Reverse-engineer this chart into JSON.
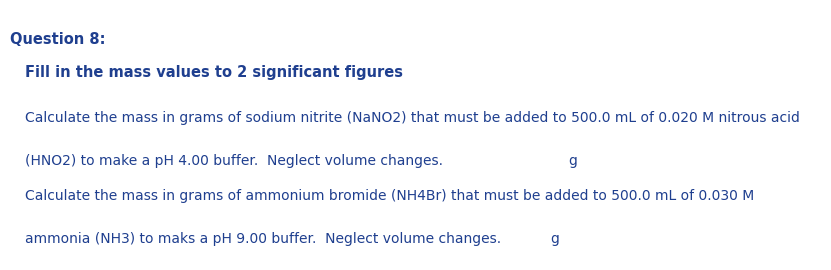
{
  "title": "Question 8:",
  "subtitle": "Fill in the mass values to 2 significant figures",
  "line1": "Calculate the mass in grams of sodium nitrite (NaNO2) that must be added to 500.0 mL of 0.020 M nitrous acid",
  "line2": "(HNO2) to make a pH 4.00 buffer.  Neglect volume changes.",
  "line3": "Calculate the mass in grams of ammonium bromide (NH4Br) that must be added to 500.0 mL of 0.030 M",
  "line4": "ammonia (NH3) to maks a pH 9.00 buffer.  Neglect volume changes.",
  "unit": "g",
  "bg_color": "#ffffff",
  "text_color": "#1f3f8f",
  "title_color": "#1f3f8f",
  "subtitle_color": "#1f3f8f",
  "box_edge_color": "#b0b0b0",
  "panel_bg": "#ffffff",
  "panel_border": "#c8c8c8",
  "title_fontsize": 10.5,
  "subtitle_fontsize": 10.5,
  "body_fontsize": 10.0
}
